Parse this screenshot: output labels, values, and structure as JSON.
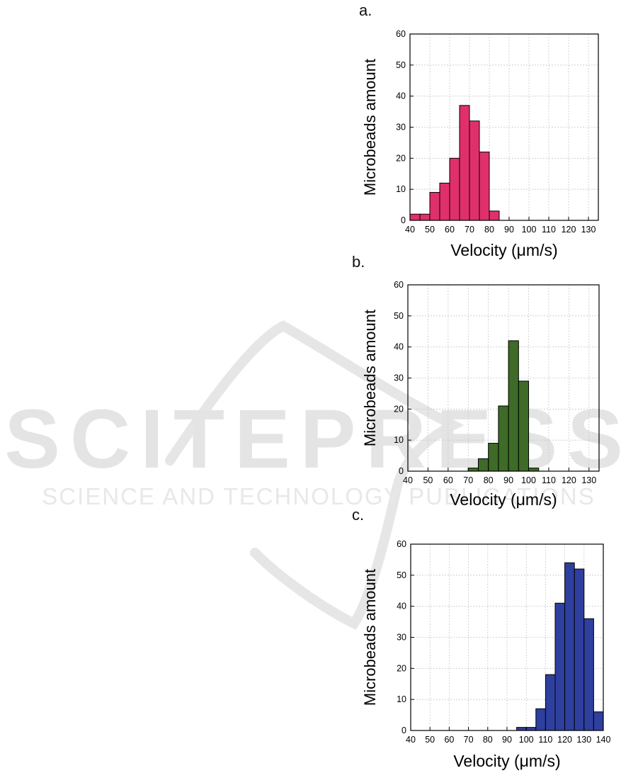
{
  "watermark": {
    "text": "SCITEPRESS",
    "subtext": "SCIENCE AND TECHNOLOGY PUBLICATIONS"
  },
  "chart_data": [
    {
      "type": "bar",
      "panel": "a.",
      "xlabel": "Velocity (μm/s)",
      "ylabel": "Microbeads amount",
      "color": "#e0306c",
      "xlim": [
        40,
        135
      ],
      "ylim": [
        0,
        60
      ],
      "xticks": [
        40,
        50,
        60,
        70,
        80,
        90,
        100,
        110,
        120,
        130
      ],
      "yticks": [
        0,
        10,
        20,
        30,
        40,
        50,
        60
      ],
      "bin_width": 5,
      "bin_starts": [
        40,
        45,
        50,
        55,
        60,
        65,
        70,
        75,
        80
      ],
      "values": [
        2,
        2,
        9,
        12,
        20,
        37,
        32,
        22,
        3
      ]
    },
    {
      "type": "bar",
      "panel": "b.",
      "xlabel": "Velocity (μm/s)",
      "ylabel": "Microbeads amount",
      "color": "#3e6b27",
      "xlim": [
        40,
        135
      ],
      "ylim": [
        0,
        60
      ],
      "xticks": [
        40,
        50,
        60,
        70,
        80,
        90,
        100,
        110,
        120,
        130
      ],
      "yticks": [
        0,
        10,
        20,
        30,
        40,
        50,
        60
      ],
      "bin_width": 5,
      "bin_starts": [
        70,
        75,
        80,
        85,
        90,
        95,
        100
      ],
      "values": [
        1,
        4,
        9,
        21,
        42,
        29,
        1
      ]
    },
    {
      "type": "bar",
      "panel": "c.",
      "xlabel": "Velocity (μm/s)",
      "ylabel": "Microbeads amount",
      "color": "#2e3f9e",
      "xlim": [
        40,
        140
      ],
      "ylim": [
        0,
        60
      ],
      "xticks": [
        40,
        50,
        60,
        70,
        80,
        90,
        100,
        110,
        120,
        130,
        140
      ],
      "yticks": [
        0,
        10,
        20,
        30,
        40,
        50,
        60
      ],
      "bin_width": 5,
      "bin_starts": [
        95,
        100,
        105,
        110,
        115,
        120,
        125,
        130,
        135
      ],
      "values": [
        1,
        1,
        7,
        18,
        41,
        54,
        52,
        36,
        6
      ]
    }
  ]
}
